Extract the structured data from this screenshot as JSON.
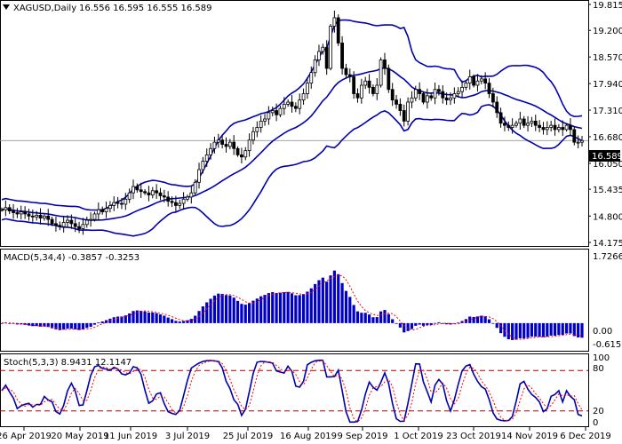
{
  "chart_data": [
    {
      "type": "candlestick",
      "panel": "price",
      "header": {
        "icon": "triangle-down-icon",
        "symbol": "XAGUSD,Daily",
        "ohlc": "16.556 16.595 16.555 16.589"
      },
      "ylim": [
        14.175,
        19.815
      ],
      "y_ticks": [
        "19.815",
        "19.200",
        "18.570",
        "17.940",
        "17.310",
        "16.680",
        "16.050",
        "15.435",
        "14.800",
        "14.175"
      ],
      "last_price": "16.589",
      "closes": [
        14.95,
        15.0,
        14.92,
        14.88,
        14.85,
        14.9,
        14.85,
        14.8,
        14.78,
        14.82,
        14.75,
        14.8,
        14.72,
        14.62,
        14.58,
        14.55,
        14.65,
        14.7,
        14.62,
        14.55,
        14.5,
        14.6,
        14.7,
        14.72,
        14.85,
        14.95,
        14.9,
        14.98,
        15.05,
        15.12,
        15.1,
        15.08,
        15.2,
        15.35,
        15.5,
        15.42,
        15.38,
        15.35,
        15.3,
        15.4,
        15.35,
        15.28,
        15.25,
        15.15,
        15.12,
        15.05,
        15.1,
        15.2,
        15.25,
        15.35,
        15.6,
        15.9,
        16.1,
        16.25,
        16.4,
        16.55,
        16.6,
        16.5,
        16.45,
        16.55,
        16.4,
        16.25,
        16.2,
        16.35,
        16.6,
        16.8,
        16.9,
        17.05,
        17.1,
        17.25,
        17.3,
        17.2,
        17.35,
        17.45,
        17.5,
        17.4,
        17.35,
        17.55,
        17.7,
        17.95,
        18.2,
        18.5,
        18.7,
        18.8,
        18.3,
        19.3,
        19.5,
        18.9,
        18.3,
        18.15,
        18.1,
        17.7,
        17.6,
        17.9,
        18.0,
        17.85,
        17.7,
        17.9,
        18.5,
        18.3,
        17.8,
        17.55,
        17.45,
        17.3,
        17.05,
        17.5,
        17.6,
        17.8,
        17.7,
        17.5,
        17.65,
        17.6,
        17.8,
        17.75,
        17.6,
        17.55,
        17.6,
        17.7,
        17.75,
        17.85,
        17.95,
        18.1,
        17.9,
        18.0,
        18.05,
        17.95,
        17.7,
        17.5,
        17.25,
        17.0,
        16.95,
        16.9,
        16.95,
        17.0,
        17.1,
        16.95,
        17.0,
        17.05,
        16.95,
        16.9,
        16.85,
        16.9,
        16.95,
        16.85,
        16.9,
        16.85,
        16.95,
        16.85,
        16.55,
        16.55,
        16.589
      ],
      "indicator": "Bollinger Bands"
    },
    {
      "type": "histogram",
      "panel": "macd",
      "header": "MACD(5,34,4) -0.3857 -0.3253",
      "ylim": [
        -0.6156,
        1.7266
      ],
      "y_ticks": [
        "1.7266",
        "0.00",
        "-0.6156"
      ]
    },
    {
      "type": "line",
      "panel": "stochastic",
      "header": "Stoch(5,3,3) 8.9431 12.1147",
      "ylim": [
        0,
        100
      ],
      "y_ticks": [
        "100",
        "80",
        "20",
        "0"
      ],
      "levels": [
        80,
        20
      ]
    }
  ],
  "x_labels": [
    "26 Apr 2019",
    "20 May 2019",
    "11 Jun 2019",
    "3 Jul 2019",
    "25 Jul 2019",
    "16 Aug 2019",
    "9 Sep 2019",
    "1 Oct 2019",
    "23 Oct 2019",
    "14 Nov 2019",
    "6 Dec 2019"
  ],
  "colors": {
    "band": "#0000b0",
    "histogram": "#0000c8",
    "signal": "#ff0000",
    "level": "#b00000",
    "candle": "#000000",
    "frame": "#000000"
  }
}
